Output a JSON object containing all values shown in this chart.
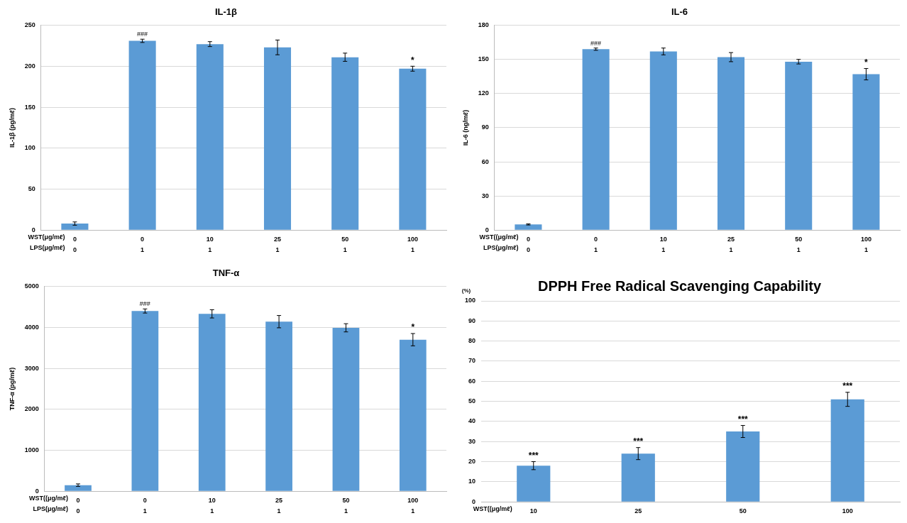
{
  "chart_data": [
    {
      "type": "bar",
      "title": "IL-1β",
      "ylabel": "IL-1β (pg/mℓ)",
      "xlabel": "WST(μg/mℓ)\nLPS(μg/mℓ)",
      "categories": [
        "0\n0",
        "0\n1",
        "10\n1",
        "25\n1",
        "50\n1",
        "100\n1"
      ],
      "values": [
        8,
        231,
        227,
        223,
        211,
        197
      ],
      "errors": [
        2,
        2,
        3,
        9,
        5,
        3
      ],
      "color": "#5b9bd5",
      "ylim": [
        0,
        250
      ],
      "yticks": [
        0,
        50,
        100,
        150,
        200,
        250
      ],
      "grid": "y",
      "legend": false,
      "annotations": [
        {
          "text": "###",
          "x": "0\n1",
          "y": 233
        },
        {
          "text": "*",
          "x": "100\n1",
          "y": 200
        }
      ]
    },
    {
      "type": "bar",
      "title": "IL-6",
      "ylabel": "IL-6 (ng/mℓ)",
      "xlabel": "WST((μg/mℓ)\nLPS(μg/mℓ)",
      "categories": [
        "0\n0",
        "0\n1",
        "10\n1",
        "25\n1",
        "50\n1",
        "100\n1"
      ],
      "values": [
        5,
        159,
        157,
        152,
        148,
        137
      ],
      "errors": [
        0.5,
        1,
        3,
        4,
        2,
        5
      ],
      "color": "#5b9bd5",
      "ylim": [
        0,
        180
      ],
      "yticks": [
        0,
        30,
        60,
        90,
        120,
        150,
        180
      ],
      "grid": "y",
      "legend": false,
      "annotations": [
        {
          "text": "###",
          "x": "0\n1",
          "y": 160
        },
        {
          "text": "*",
          "x": "100\n1",
          "y": 142
        }
      ]
    },
    {
      "type": "bar",
      "title": "TNF-α",
      "ylabel": "TNF-α (pg/mℓ)",
      "xlabel": "WST((μg/mℓ)\nLPS(μg/mℓ)",
      "categories": [
        "0\n0",
        "0\n1",
        "10\n1",
        "25\n1",
        "50\n1",
        "100\n1"
      ],
      "values": [
        150,
        4400,
        4330,
        4140,
        3990,
        3700
      ],
      "errors": [
        30,
        50,
        100,
        150,
        100,
        150
      ],
      "color": "#5b9bd5",
      "ylim": [
        0,
        5000
      ],
      "yticks": [
        0,
        1000,
        2000,
        3000,
        4000,
        5000
      ],
      "grid": "y",
      "legend": false,
      "annotations": [
        {
          "text": "###",
          "x": "0\n1",
          "y": 4450
        },
        {
          "text": "*",
          "x": "100\n1",
          "y": 3850
        }
      ]
    },
    {
      "type": "bar",
      "title": "DPPH Free Radical Scavenging Capability",
      "ylabel": "(%)",
      "xlabel": "WST((μg/mℓ)",
      "categories": [
        "10",
        "25",
        "50",
        "100"
      ],
      "values": [
        18,
        24,
        35,
        51
      ],
      "errors": [
        2,
        3,
        3,
        3.5
      ],
      "color": "#5b9bd5",
      "ylim": [
        0,
        100
      ],
      "yticks": [
        0,
        10,
        20,
        30,
        40,
        50,
        60,
        70,
        80,
        90,
        100
      ],
      "grid": "y",
      "legend": false,
      "annotations": [
        {
          "text": "***",
          "x": "10",
          "y": 20
        },
        {
          "text": "***",
          "x": "25",
          "y": 27
        },
        {
          "text": "***",
          "x": "50",
          "y": 38
        },
        {
          "text": "***",
          "x": "100",
          "y": 54.5
        }
      ]
    }
  ]
}
